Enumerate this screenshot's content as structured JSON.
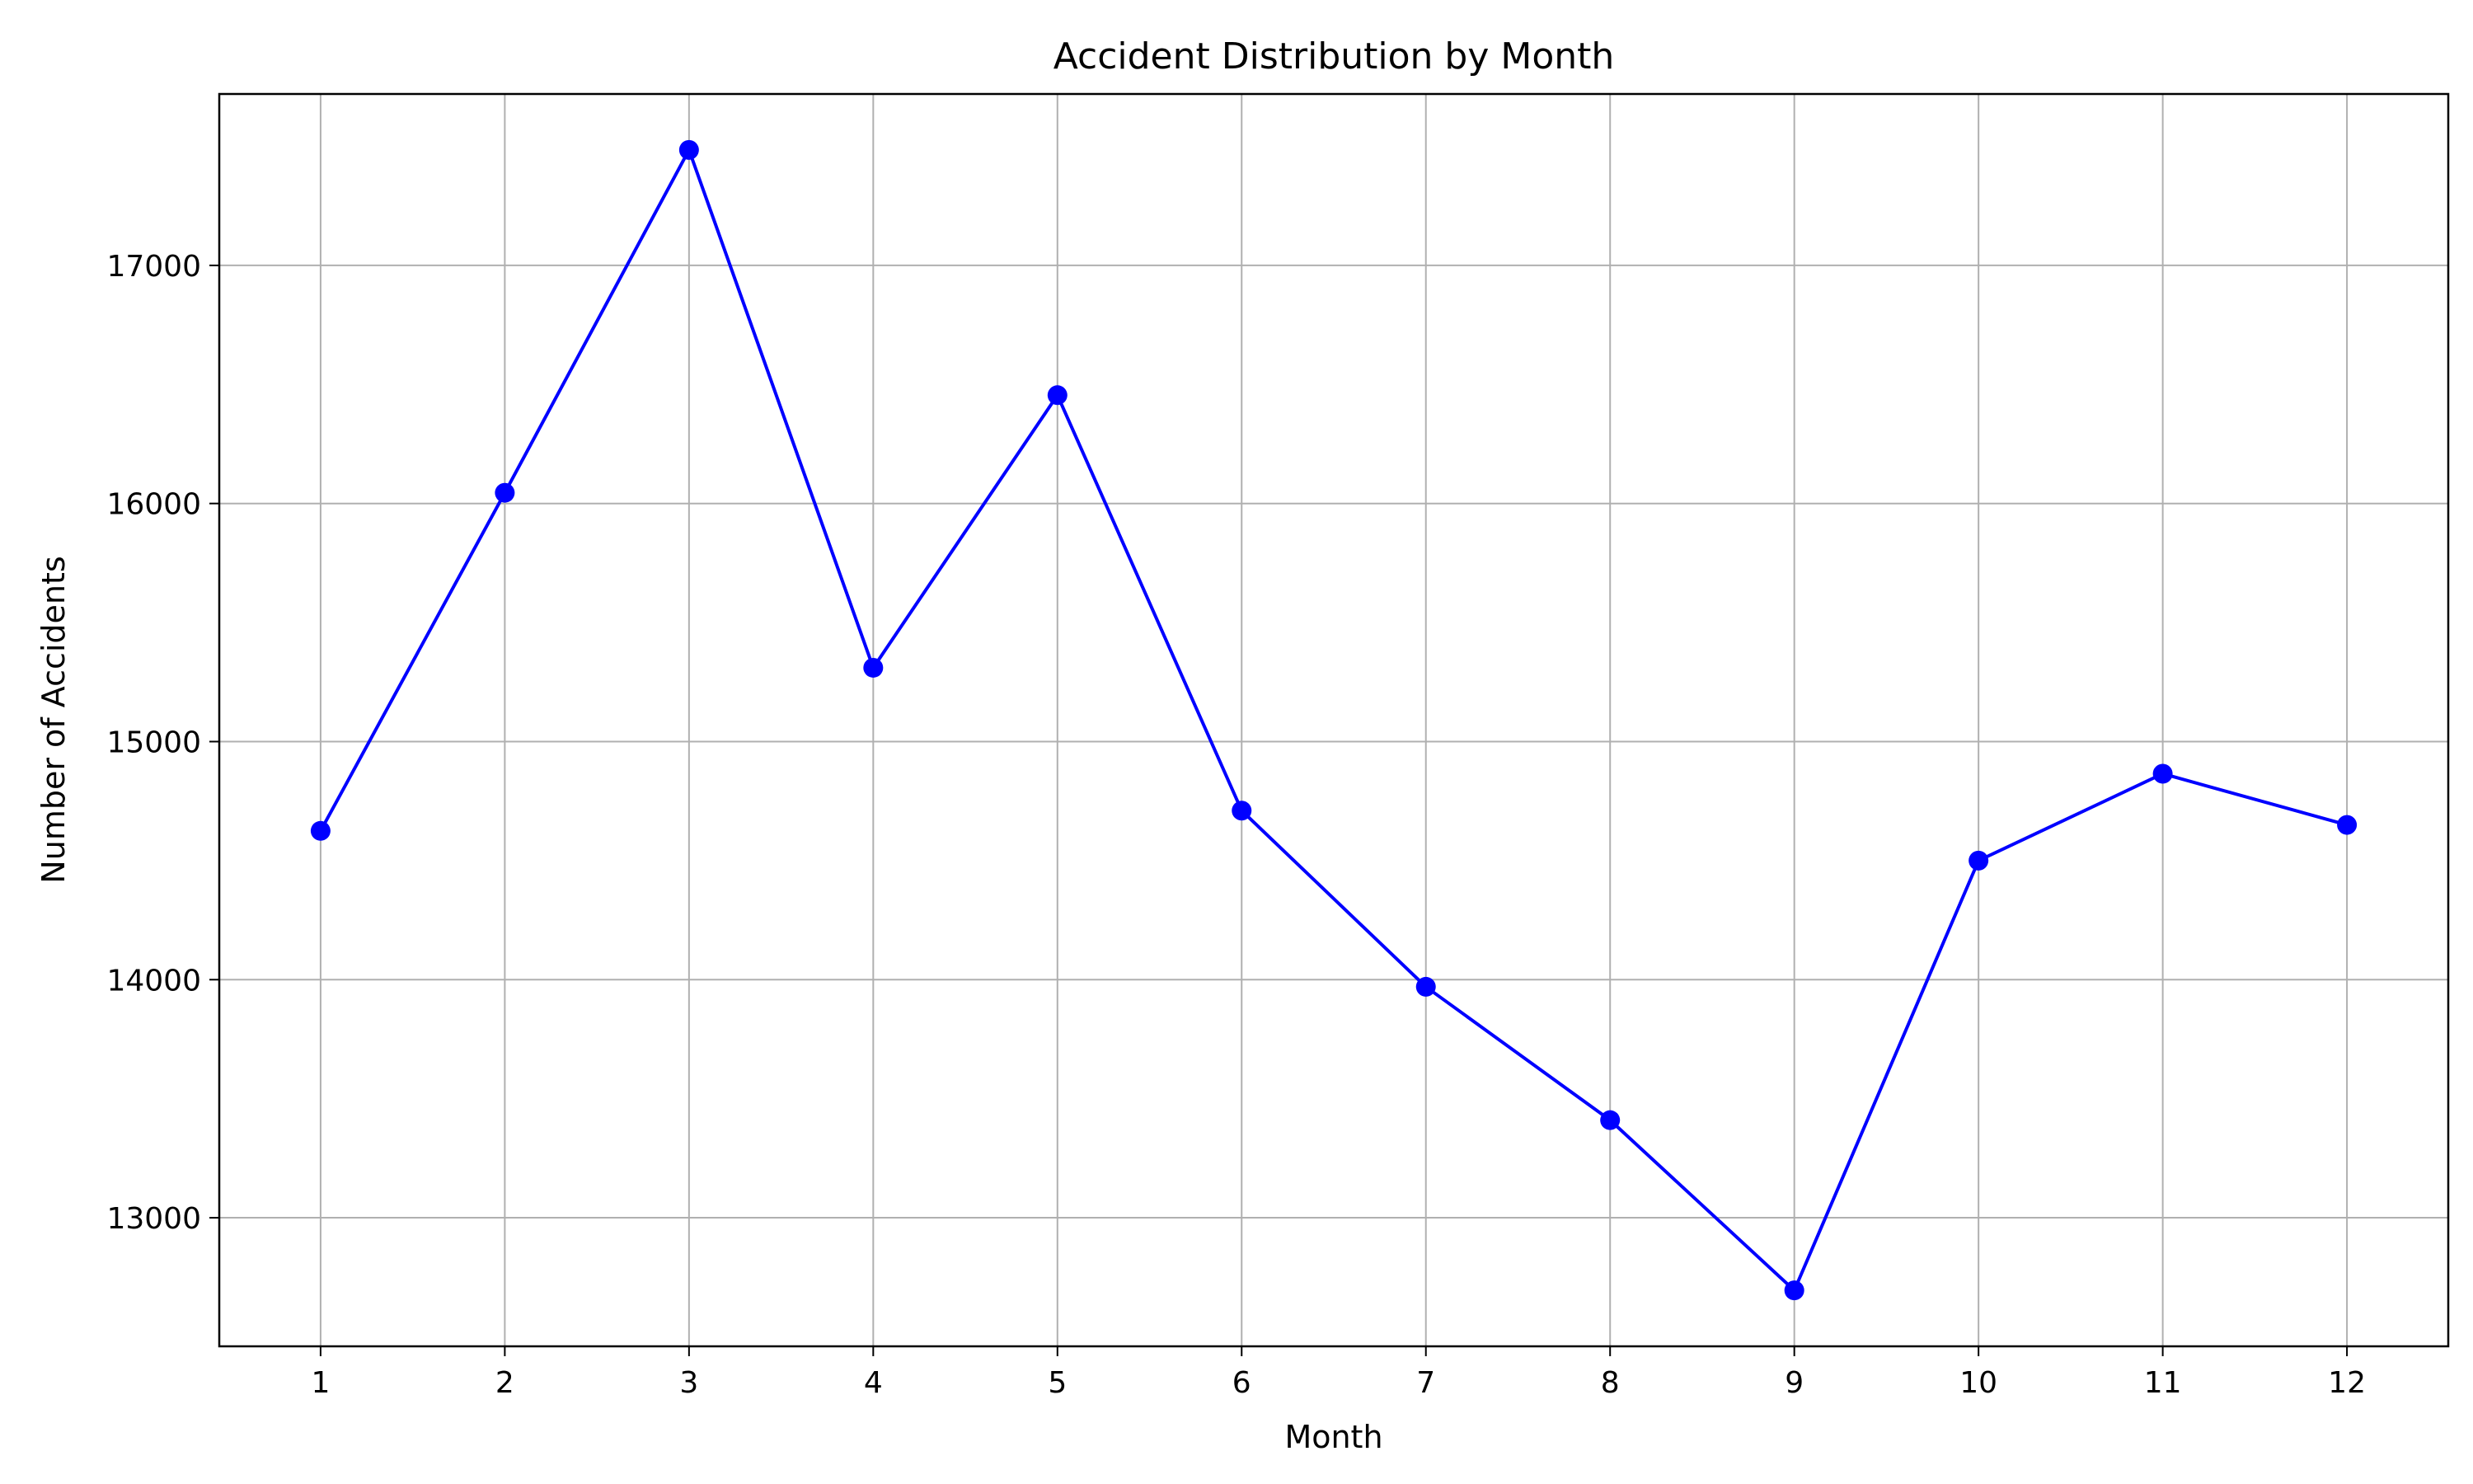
{
  "chart_data": {
    "type": "line",
    "title": "Accident Distribution by Month",
    "xlabel": "Month",
    "ylabel": "Number of Accidents",
    "x": [
      1,
      2,
      3,
      4,
      5,
      6,
      7,
      8,
      9,
      10,
      11,
      12
    ],
    "series": [
      {
        "values": [
          14625,
          16045,
          17485,
          15310,
          16455,
          14710,
          13970,
          13410,
          12695,
          14500,
          14865,
          14650
        ],
        "color": "#0000ff",
        "marker": "circle"
      }
    ],
    "xlim": [
      0.45,
      12.55
    ],
    "ylim": [
      12460,
      17720
    ],
    "xticks": [
      1,
      2,
      3,
      4,
      5,
      6,
      7,
      8,
      9,
      10,
      11,
      12
    ],
    "yticks": [
      13000,
      14000,
      15000,
      16000,
      17000
    ],
    "grid": true,
    "legend": "none"
  }
}
